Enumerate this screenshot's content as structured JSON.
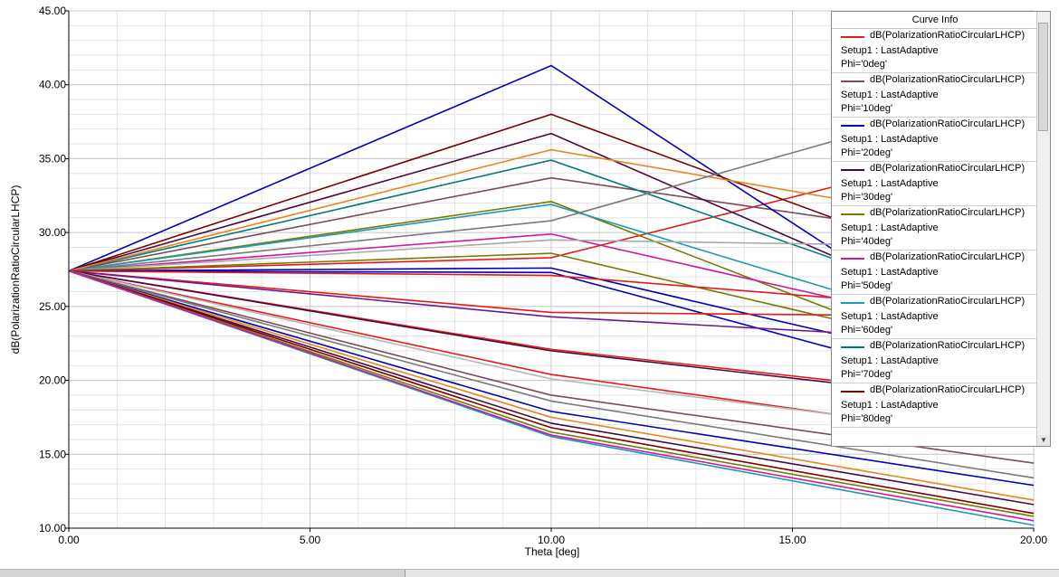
{
  "chart_data": {
    "type": "line",
    "xlabel": "Theta [deg]",
    "ylabel": "dB(PolarizationRatioCircularLHCP)",
    "xlim": [
      0,
      20
    ],
    "ylim": [
      10,
      45
    ],
    "x_ticks": [
      "0.00",
      "5.00",
      "10.00",
      "15.00",
      "20.00"
    ],
    "y_ticks": [
      "10.00",
      "15.00",
      "20.00",
      "25.00",
      "30.00",
      "35.00",
      "40.00",
      "45.00"
    ],
    "grid": true,
    "legend_position": "top-right",
    "x": [
      0,
      10,
      20
    ],
    "series": [
      {
        "name": "dB(PolarizationRatioCircularLHCP)",
        "setup": "Setup1 : LastAdaptive",
        "phi": "Phi='0deg'",
        "color": "#e41a1c",
        "values": [
          27.4,
          28.3,
          36.5
        ]
      },
      {
        "name": "dB(PolarizationRatioCircularLHCP)",
        "setup": "Setup1 : LastAdaptive",
        "phi": "Phi='10deg'",
        "color": "#7b4b57",
        "values": [
          27.4,
          33.7,
          29.0
        ]
      },
      {
        "name": "dB(PolarizationRatioCircularLHCP)",
        "setup": "Setup1 : LastAdaptive",
        "phi": "Phi='20deg'",
        "color": "#0000b4",
        "values": [
          27.4,
          41.3,
          20.0
        ]
      },
      {
        "name": "dB(PolarizationRatioCircularLHCP)",
        "setup": "Setup1 : LastAdaptive",
        "phi": "Phi='30deg'",
        "color": "#4a0a3c",
        "values": [
          27.4,
          36.7,
          22.5
        ]
      },
      {
        "name": "dB(PolarizationRatioCircularLHCP)",
        "setup": "Setup1 : LastAdaptive",
        "phi": "Phi='40deg'",
        "color": "#7a7a00",
        "values": [
          27.4,
          32.1,
          19.5
        ]
      },
      {
        "name": "dB(PolarizationRatioCircularLHCP)",
        "setup": "Setup1 : LastAdaptive",
        "phi": "Phi='50deg'",
        "color": "#cc1aa0",
        "values": [
          27.4,
          29.9,
          22.5
        ]
      },
      {
        "name": "dB(PolarizationRatioCircularLHCP)",
        "setup": "Setup1 : LastAdaptive",
        "phi": "Phi='60deg'",
        "color": "#1a9ab4",
        "values": [
          27.4,
          31.9,
          22.0
        ]
      },
      {
        "name": "dB(PolarizationRatioCircularLHCP)",
        "setup": "Setup1 : LastAdaptive",
        "phi": "Phi='70deg'",
        "color": "#007b7b",
        "values": [
          27.4,
          34.9,
          23.5
        ]
      },
      {
        "name": "dB(PolarizationRatioCircularLHCP)",
        "setup": "Setup1 : LastAdaptive",
        "phi": "Phi='80deg'",
        "color": "#780000",
        "values": [
          27.4,
          38.0,
          26.0
        ]
      },
      {
        "color": "#e8871e",
        "values": [
          27.4,
          35.6,
          30.0
        ]
      },
      {
        "color": "#7a7a7a",
        "values": [
          27.4,
          30.8,
          40.0
        ]
      },
      {
        "color": "#a8a8a8",
        "values": [
          27.4,
          29.5,
          29.0
        ]
      },
      {
        "color": "#7a7a00",
        "values": [
          27.4,
          28.6,
          21.0
        ]
      },
      {
        "color": "#0000b4",
        "values": [
          27.4,
          27.6,
          20.0
        ]
      },
      {
        "color": "#0000b4",
        "values": [
          27.4,
          27.3,
          18.5
        ]
      },
      {
        "color": "#e41a1c",
        "values": [
          27.4,
          27.1,
          24.5
        ]
      },
      {
        "color": "#e41a1c",
        "values": [
          27.4,
          24.6,
          24.3
        ]
      },
      {
        "color": "#6a1a8a",
        "values": [
          27.4,
          24.3,
          22.5
        ]
      },
      {
        "color": "#e41a1c",
        "values": [
          27.4,
          22.1,
          18.5
        ]
      },
      {
        "color": "#4a0a3c",
        "values": [
          27.4,
          22.0,
          18.3
        ]
      },
      {
        "color": "#e41a1c",
        "values": [
          27.4,
          20.4,
          15.8
        ]
      },
      {
        "color": "#b8b8b8",
        "values": [
          27.4,
          20.1,
          16.0
        ]
      },
      {
        "color": "#7b4b57",
        "values": [
          27.4,
          19.0,
          14.4
        ]
      },
      {
        "color": "#7a7a7a",
        "values": [
          27.4,
          18.6,
          13.4
        ]
      },
      {
        "color": "#0000b4",
        "values": [
          27.4,
          17.9,
          12.9
        ]
      },
      {
        "color": "#e8871e",
        "values": [
          27.4,
          17.5,
          11.9
        ]
      },
      {
        "color": "#4a0a3c",
        "values": [
          27.4,
          17.1,
          11.6
        ]
      },
      {
        "color": "#780000",
        "values": [
          27.4,
          16.8,
          11.0
        ]
      },
      {
        "color": "#7a7a00",
        "values": [
          27.4,
          16.5,
          10.8
        ]
      },
      {
        "color": "#1a9ab4",
        "values": [
          27.4,
          16.2,
          10.2
        ]
      },
      {
        "color": "#cc1aa0",
        "values": [
          27.4,
          16.3,
          10.5
        ]
      }
    ]
  },
  "legend": {
    "title": "Curve Info"
  },
  "colors": {
    "background": "#ffffff",
    "grid_major": "#c8c8c8",
    "grid_minor": "#e4e4e4",
    "axis": "#000000"
  }
}
